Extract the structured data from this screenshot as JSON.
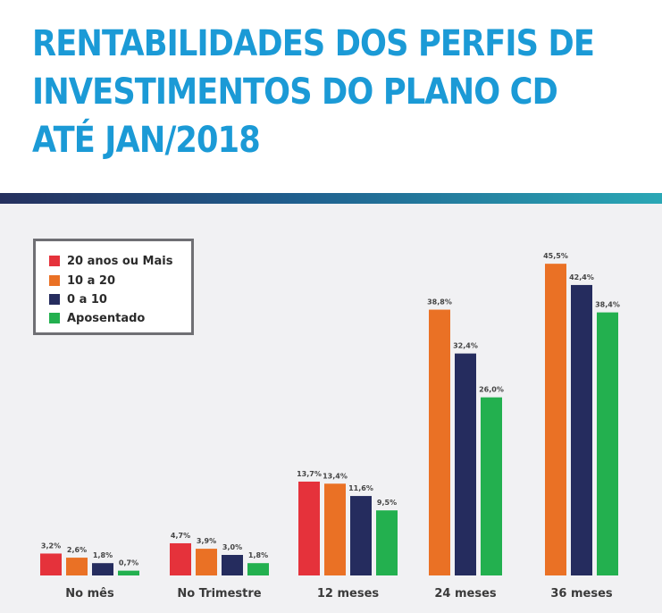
{
  "header": {
    "title_lines": [
      "RENTABILIDADES DOS PERFIS DE",
      "INVESTIMENTOS DO PLANO CD",
      "ATÉ JAN/2018"
    ]
  },
  "colors": {
    "title": "#1b9ad6",
    "stripe_start": "#25305e",
    "stripe_end": "#2aa7b5",
    "panel_background": "#f1f1f3",
    "axis_label": "#3a3a3a"
  },
  "chart_data": {
    "type": "bar",
    "title": "RENTABILIDADES DOS PERFIS DE INVESTIMENTOS DO PLANO CD ATÉ JAN/2018",
    "xlabel": "",
    "ylabel": "",
    "ylim": [
      0,
      48
    ],
    "grid": false,
    "legend_position": "top-left",
    "value_suffix": "%",
    "categories": [
      "No mês",
      "No Trimestre",
      "12 meses",
      "24 meses",
      "36 meses"
    ],
    "series": [
      {
        "name": "20 anos ou Mais",
        "color": "#e5323b",
        "values": [
          3.2,
          4.7,
          13.7,
          null,
          null
        ],
        "labels": [
          "3,2%",
          "4,7%",
          "13,7%",
          null,
          null
        ]
      },
      {
        "name": "10 a 20",
        "color": "#ea7125",
        "values": [
          2.6,
          3.9,
          13.4,
          38.8,
          45.5
        ],
        "labels": [
          "2,6%",
          "3,9%",
          "13,4%",
          "38,8%",
          "45,5%"
        ]
      },
      {
        "name": "0 a 10",
        "color": "#252c5e",
        "values": [
          1.8,
          3.0,
          11.6,
          32.4,
          42.4
        ],
        "labels": [
          "1,8%",
          "3,0%",
          "11,6%",
          "32,4%",
          "42,4%"
        ]
      },
      {
        "name": "Aposentado",
        "color": "#23b04f",
        "values": [
          0.7,
          1.8,
          9.5,
          26.0,
          38.4
        ],
        "labels": [
          "0,7%",
          "1,8%",
          "9,5%",
          "26,0%",
          "38,4%"
        ]
      }
    ]
  }
}
